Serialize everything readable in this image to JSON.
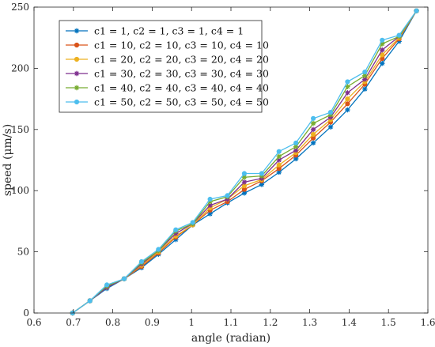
{
  "chart_data": {
    "type": "line",
    "xlabel": "angle (radian)",
    "ylabel": "speed (μm/s)",
    "xlim": [
      0.6,
      1.6
    ],
    "ylim": [
      0,
      250
    ],
    "xticks": [
      "0.6",
      "0.7",
      "0.8",
      "0.9",
      "1",
      "1.1",
      "1.2",
      "1.3",
      "1.4",
      "1.5",
      "1.6"
    ],
    "yticks": [
      "0",
      "50",
      "100",
      "150",
      "200",
      "250"
    ],
    "legend_position": "top-left",
    "grid": false,
    "x": [
      0.698,
      0.742,
      0.785,
      0.829,
      0.873,
      0.916,
      0.96,
      1.003,
      1.047,
      1.091,
      1.134,
      1.178,
      1.222,
      1.265,
      1.309,
      1.353,
      1.396,
      1.44,
      1.484,
      1.527,
      1.571
    ],
    "series": [
      {
        "name": "c1 = 1, c2 = 1, c3 = 1, c4 = 1",
        "color": "#0072BD",
        "marker": "star",
        "values": [
          0,
          10,
          20,
          28,
          37,
          48,
          60,
          72,
          81,
          90,
          98,
          105,
          115,
          126,
          139,
          152,
          166,
          183,
          204,
          222,
          247
        ]
      },
      {
        "name": "c1 = 10, c2 = 10, c3 = 10, c4 = 10",
        "color": "#D95319",
        "marker": "dot",
        "values": [
          0,
          10,
          21,
          28,
          38,
          49,
          62,
          72,
          84,
          91,
          101,
          108,
          118,
          129,
          143,
          156,
          171,
          187,
          208,
          224,
          247
        ]
      },
      {
        "name": "c1 = 20, c2 = 20, c3 = 20, c4 = 20",
        "color": "#EDB120",
        "marker": "dot",
        "values": [
          0,
          10,
          21,
          28,
          39,
          50,
          63,
          72,
          86,
          93,
          104,
          109,
          121,
          131,
          146,
          158,
          175,
          189,
          211,
          225,
          247
        ]
      },
      {
        "name": "c1 = 30, c2 = 30, c3 = 30, c4 = 30",
        "color": "#7E2F8E",
        "marker": "star",
        "values": [
          0,
          10,
          21,
          28,
          40,
          51,
          65,
          73,
          88,
          93,
          107,
          110,
          125,
          133,
          150,
          160,
          180,
          191,
          215,
          226,
          247
        ]
      },
      {
        "name": "c1 = 40, c2 = 40, c3 = 40, c4 = 40",
        "color": "#77AC30",
        "marker": "star",
        "values": [
          0,
          10,
          22,
          28,
          41,
          51,
          67,
          73,
          91,
          95,
          111,
          112,
          128,
          136,
          155,
          162,
          185,
          194,
          220,
          226,
          247
        ]
      },
      {
        "name": "c1 = 50, c2 = 50, c3 = 50, c4 = 50",
        "color": "#4DBEEE",
        "marker": "dot",
        "values": [
          0,
          10,
          23,
          28,
          42,
          52,
          68,
          74,
          93,
          96,
          114,
          114,
          132,
          139,
          159,
          164,
          189,
          197,
          223,
          227,
          247
        ]
      }
    ]
  }
}
